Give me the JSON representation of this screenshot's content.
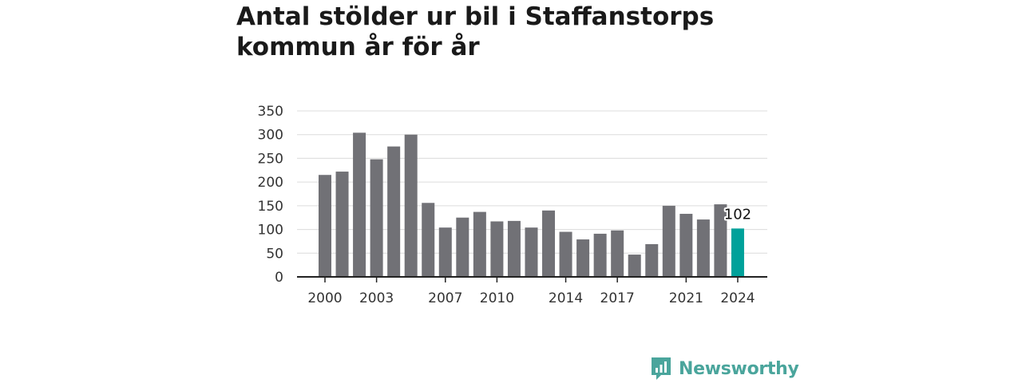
{
  "header": {
    "title_line1": "Antal stölder ur bil i Staffanstorps",
    "title_line2": "kommun år för år"
  },
  "brand": {
    "name": "Newsworthy",
    "icon": "newsworthy-logo-icon"
  },
  "colors": {
    "bar": "#717176",
    "highlight": "#00a19a",
    "grid": "#dcdcdc",
    "axis": "#222222",
    "brand": "#4aa59c"
  },
  "chart_data": {
    "type": "bar",
    "title": "Antal stölder ur bil i Staffanstorps kommun år för år",
    "xlabel": "",
    "ylabel": "",
    "categories": [
      "2000",
      "2001",
      "2002",
      "2003",
      "2004",
      "2005",
      "2006",
      "2007",
      "2008",
      "2009",
      "2010",
      "2011",
      "2012",
      "2013",
      "2014",
      "2015",
      "2016",
      "2017",
      "2018",
      "2019",
      "2020",
      "2021",
      "2022",
      "2023",
      "2024"
    ],
    "values": [
      215,
      222,
      304,
      248,
      275,
      300,
      156,
      104,
      125,
      137,
      117,
      118,
      104,
      140,
      95,
      79,
      91,
      98,
      47,
      69,
      150,
      133,
      121,
      153,
      102
    ],
    "x_tick_labels": [
      "2000",
      "2003",
      "2007",
      "2010",
      "2014",
      "2017",
      "2021",
      "2024"
    ],
    "y_ticks": [
      0,
      50,
      100,
      150,
      200,
      250,
      300,
      350
    ],
    "ylim": [
      0,
      350
    ],
    "highlight": {
      "category": "2024",
      "value_label": "102"
    },
    "grid": true,
    "legend": "none"
  }
}
